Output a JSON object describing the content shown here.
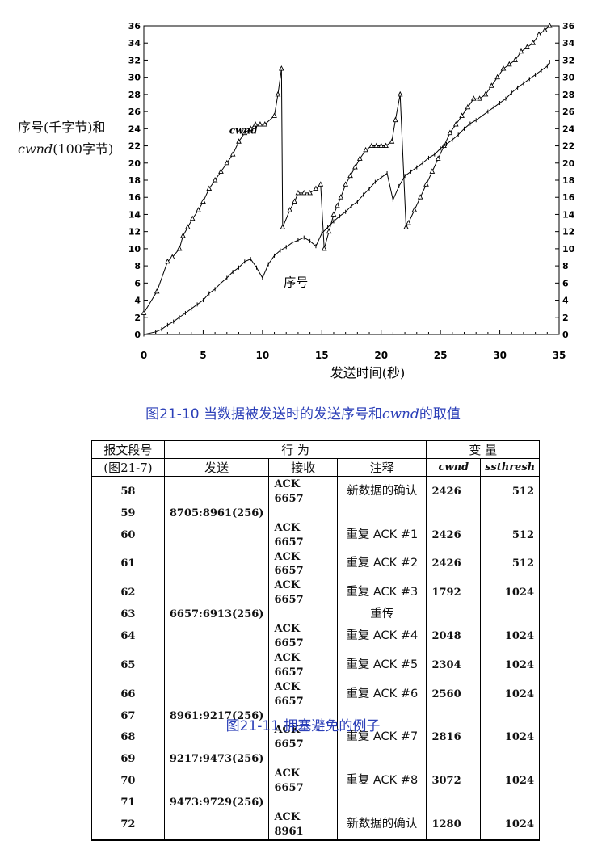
{
  "chart_data": {
    "type": "line",
    "xlabel": "发送时间(秒)",
    "ylabel_line1": "序号(千字节)和",
    "ylabel_line2_italic": "cwnd",
    "ylabel_line2_rest": "(100字节)",
    "xlim": [
      0,
      35
    ],
    "ylim": [
      0,
      36
    ],
    "x_ticks": [
      0,
      5,
      10,
      15,
      20,
      25,
      30,
      35
    ],
    "y_ticks": [
      0,
      2,
      4,
      6,
      8,
      10,
      12,
      14,
      16,
      18,
      20,
      22,
      24,
      26,
      28,
      30,
      32,
      34,
      36
    ],
    "series": [
      {
        "name": "cwnd",
        "marker": "triangle",
        "x": [
          0,
          1.1,
          2,
          2.4,
          3,
          3.3,
          3.7,
          4.1,
          4.6,
          5,
          5.5,
          6,
          6.5,
          7,
          7.5,
          8,
          8.5,
          9,
          9.4,
          9.8,
          10.2,
          11,
          11.3,
          11.6,
          11.7,
          12.3,
          12.7,
          13,
          13.5,
          14,
          14.5,
          14.9,
          15.2,
          15.6,
          16,
          16.3,
          16.6,
          17,
          17.4,
          17.8,
          18.2,
          18.7,
          19.2,
          19.6,
          20,
          20.4,
          20.9,
          21.2,
          21.6,
          22.1,
          22.3,
          22.8,
          23.3,
          23.8,
          24.3,
          24.8,
          25.3,
          25.8,
          26.3,
          26.8,
          27.3,
          27.8,
          28.3,
          28.8,
          29.3,
          29.8,
          30.3,
          30.8,
          31.3,
          31.8,
          32.3,
          32.8,
          33.3,
          33.8,
          34.2
        ],
        "values": [
          2.5,
          5,
          8.5,
          9,
          10,
          11.5,
          12.5,
          13.5,
          14.5,
          15.5,
          17,
          18,
          19,
          20,
          21,
          22.5,
          23.5,
          24,
          24.5,
          24.5,
          24.5,
          25.5,
          28,
          31,
          12.5,
          14.5,
          15.5,
          16.5,
          16.5,
          16.5,
          17,
          17.5,
          10,
          12,
          14,
          15,
          16,
          17.5,
          18.5,
          19.5,
          20.5,
          21.5,
          22,
          22,
          22,
          22,
          22.5,
          25,
          28,
          12.5,
          13,
          14.5,
          16,
          17.5,
          19,
          20.5,
          22,
          23.5,
          24.5,
          25.5,
          26.5,
          27.5,
          27.5,
          28,
          29,
          30,
          31,
          31.5,
          32,
          33,
          33.5,
          34,
          35,
          35.5,
          36
        ]
      },
      {
        "name": "序号",
        "marker": "tick",
        "x": [
          0,
          1,
          1.5,
          2,
          2.5,
          3,
          3.5,
          4,
          4.5,
          5,
          5.5,
          6,
          6.5,
          7,
          7.5,
          8,
          8.5,
          9,
          9.5,
          10,
          10.5,
          11,
          11.5,
          12,
          12.5,
          13,
          13.5,
          14,
          14.5,
          15,
          15.5,
          16,
          16.5,
          17,
          17.5,
          18,
          18.5,
          19,
          19.5,
          20,
          20.5,
          21,
          21.5,
          22,
          22.5,
          23,
          23.5,
          24,
          24.5,
          25,
          25.5,
          26,
          26.5,
          27,
          27.5,
          28,
          28.5,
          29,
          29.5,
          30,
          30.5,
          31,
          31.5,
          32,
          32.5,
          33,
          33.5,
          34,
          34.2
        ],
        "values": [
          0,
          0.3,
          0.6,
          1.1,
          1.5,
          2,
          2.5,
          3,
          3.5,
          4,
          4.8,
          5.3,
          6,
          6.6,
          7.3,
          7.8,
          8.5,
          8.8,
          7.8,
          6.6,
          8.2,
          9.2,
          9.8,
          10.2,
          10.7,
          11,
          11.3,
          10.9,
          10.3,
          11.8,
          12.5,
          13.2,
          13.8,
          14.3,
          15,
          15.5,
          16.3,
          17,
          17.8,
          18.3,
          18.8,
          15.7,
          17.3,
          18.5,
          19,
          19.5,
          20,
          20.6,
          21,
          21.7,
          22.2,
          22.7,
          23.3,
          24,
          24.6,
          25,
          25.5,
          26,
          26.5,
          27,
          27.5,
          28.2,
          28.8,
          29.3,
          29.8,
          30.3,
          30.8,
          31.3,
          31.8
        ]
      }
    ],
    "annotations": [
      {
        "text": "cwnd",
        "x": 7.2,
        "y": 23.4
      },
      {
        "text": "序号",
        "x": 11.8,
        "y": 5.6
      }
    ]
  },
  "figure_captions": {
    "fig_10_prefix": "图21-10   当数据被发送时的发送序号和",
    "fig_10_italic": "cwnd",
    "fig_10_suffix": "的取值",
    "fig_11": "图21-11   拥塞避免的例子"
  },
  "table": {
    "header_row1": {
      "seg": "报文段号",
      "action": "行   为",
      "vars": "变   量"
    },
    "header_row2": {
      "seg": "(图21-7)",
      "send": "发送",
      "recv": "接收",
      "note": "注释",
      "cwnd": "cwnd",
      "ssthresh": "ssthresh"
    },
    "rows": [
      {
        "seg": "58",
        "send": "",
        "recv": "ACK 6657",
        "note": "新数据的确认",
        "cwnd": "2426",
        "ssthresh": "512"
      },
      {
        "seg": "59",
        "send": "8705:8961(256)",
        "recv": "",
        "note": "",
        "cwnd": "",
        "ssthresh": ""
      },
      {
        "seg": "60",
        "send": "",
        "recv": "ACK 6657",
        "note": "重复 ACK #1",
        "cwnd": "2426",
        "ssthresh": "512"
      },
      {
        "seg": "61",
        "send": "",
        "recv": "ACK 6657",
        "note": "重复 ACK #2",
        "cwnd": "2426",
        "ssthresh": "512"
      },
      {
        "seg": "62",
        "send": "",
        "recv": "ACK 6657",
        "note": "重复 ACK #3",
        "cwnd": "1792",
        "ssthresh": "1024"
      },
      {
        "seg": "63",
        "send": "6657:6913(256)",
        "recv": "",
        "note": "重传",
        "cwnd": "",
        "ssthresh": ""
      },
      {
        "seg": "64",
        "send": "",
        "recv": "ACK 6657",
        "note": "重复 ACK #4",
        "cwnd": "2048",
        "ssthresh": "1024"
      },
      {
        "seg": "65",
        "send": "",
        "recv": "ACK 6657",
        "note": "重复 ACK #5",
        "cwnd": "2304",
        "ssthresh": "1024"
      },
      {
        "seg": "66",
        "send": "",
        "recv": "ACK 6657",
        "note": "重复 ACK #6",
        "cwnd": "2560",
        "ssthresh": "1024"
      },
      {
        "seg": "67",
        "send": "8961:9217(256)",
        "recv": "",
        "note": "",
        "cwnd": "",
        "ssthresh": ""
      },
      {
        "seg": "68",
        "send": "",
        "recv": "ACK 6657",
        "note": "重复 ACK #7",
        "cwnd": "2816",
        "ssthresh": "1024"
      },
      {
        "seg": "69",
        "send": "9217:9473(256)",
        "recv": "",
        "note": "",
        "cwnd": "",
        "ssthresh": ""
      },
      {
        "seg": "70",
        "send": "",
        "recv": "ACK 6657",
        "note": "重复 ACK #8",
        "cwnd": "3072",
        "ssthresh": "1024"
      },
      {
        "seg": "71",
        "send": "9473:9729(256)",
        "recv": "",
        "note": "",
        "cwnd": "",
        "ssthresh": ""
      },
      {
        "seg": "72",
        "send": "",
        "recv": "ACK 8961",
        "note": "新数据的确认",
        "cwnd": "1280",
        "ssthresh": "1024"
      }
    ]
  }
}
